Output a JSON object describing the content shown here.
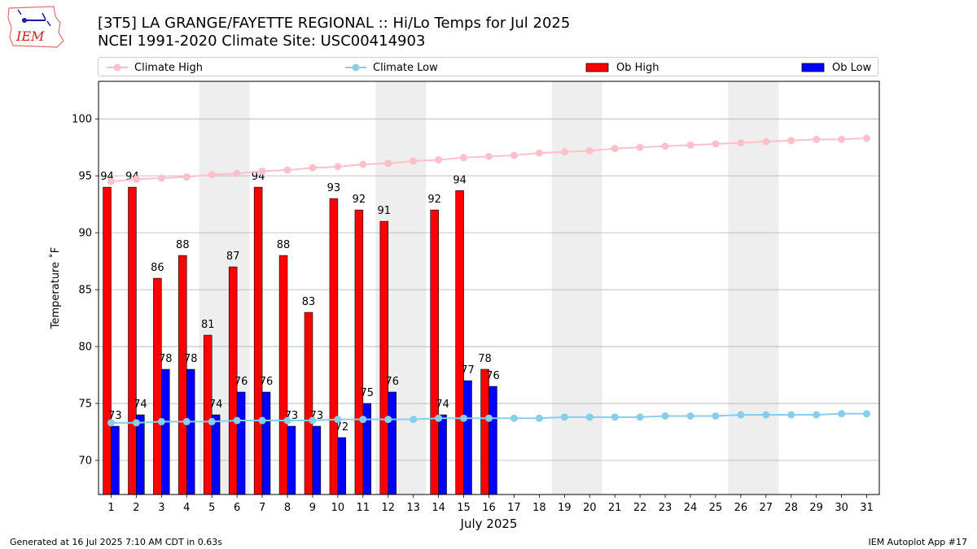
{
  "title": "[3T5] LA GRANGE/FAYETTE REGIONAL :: Hi/Lo Temps for Jul 2025",
  "subtitle": "NCEI 1991-2020 Climate Site: USC00414903",
  "logo_text": "IEM",
  "footer_left": "Generated at 16 Jul 2025 7:10 AM CDT in 0.63s",
  "footer_right": "IEM Autoplot App #17",
  "colors": {
    "ob_high": "#ff0000",
    "ob_low": "#0000ff",
    "climate_high": "#ffc0cb",
    "climate_low": "#87ceeb",
    "weekend_shade": "#eeeeee",
    "grid": "#b0b0b0"
  },
  "legend": [
    {
      "label": "Climate High",
      "kind": "line",
      "color": "#ffc0cb"
    },
    {
      "label": "Climate Low",
      "kind": "line",
      "color": "#87ceeb"
    },
    {
      "label": "Ob High",
      "kind": "bar",
      "color": "#ff0000"
    },
    {
      "label": "Ob Low",
      "kind": "bar",
      "color": "#0000ff"
    }
  ],
  "chart_data": {
    "type": "bar",
    "title": "[3T5] LA GRANGE/FAYETTE REGIONAL :: Hi/Lo Temps for Jul 2025",
    "subtitle": "NCEI 1991-2020 Climate Site: USC00414903",
    "xlabel": "July 2025",
    "ylabel": "Temperature ˚F",
    "ylim": [
      67,
      103.3
    ],
    "yticks": [
      70,
      75,
      80,
      85,
      90,
      95,
      100
    ],
    "grid": "horizontal",
    "legend_position": "top",
    "categories": [
      "1",
      "2",
      "3",
      "4",
      "5",
      "6",
      "7",
      "8",
      "9",
      "10",
      "11",
      "12",
      "13",
      "14",
      "15",
      "16",
      "17",
      "18",
      "19",
      "20",
      "21",
      "22",
      "23",
      "24",
      "25",
      "26",
      "27",
      "28",
      "29",
      "30",
      "31"
    ],
    "weekend_shading": [
      [
        "5",
        "6"
      ],
      [
        "12",
        "13"
      ],
      [
        "19",
        "20"
      ],
      [
        "26",
        "27"
      ]
    ],
    "series": [
      {
        "name": "Ob High",
        "kind": "bar",
        "values": [
          94,
          94,
          86,
          88,
          81,
          87,
          94,
          88,
          83,
          93,
          92,
          91,
          null,
          92,
          93.7,
          78,
          null,
          null,
          null,
          null,
          null,
          null,
          null,
          null,
          null,
          null,
          null,
          null,
          null,
          null,
          null
        ],
        "labels": [
          "94",
          "94",
          "86",
          "88",
          "81",
          "87",
          "94",
          "88",
          "83",
          "93",
          "92",
          "91",
          null,
          "92",
          "94",
          "78",
          null,
          null,
          null,
          null,
          null,
          null,
          null,
          null,
          null,
          null,
          null,
          null,
          null,
          null,
          null
        ]
      },
      {
        "name": "Ob Low",
        "kind": "bar",
        "values": [
          73,
          74,
          78,
          78,
          74,
          76,
          76,
          73,
          73,
          72,
          75,
          76,
          null,
          74,
          77,
          76.5,
          null,
          null,
          null,
          null,
          null,
          null,
          null,
          null,
          null,
          null,
          null,
          null,
          null,
          null,
          null
        ],
        "labels": [
          "73",
          "74",
          "78",
          "78",
          "74",
          "76",
          "76",
          "73",
          "73",
          "72",
          "75",
          "76",
          null,
          "74",
          "77",
          "76",
          null,
          null,
          null,
          null,
          null,
          null,
          null,
          null,
          null,
          null,
          null,
          null,
          null,
          null,
          null
        ]
      },
      {
        "name": "Climate High",
        "kind": "line",
        "values": [
          94.5,
          94.7,
          94.8,
          94.9,
          95.1,
          95.2,
          95.4,
          95.5,
          95.7,
          95.8,
          96.0,
          96.1,
          96.3,
          96.4,
          96.6,
          96.7,
          96.8,
          97.0,
          97.1,
          97.2,
          97.4,
          97.5,
          97.6,
          97.7,
          97.8,
          97.9,
          98.0,
          98.1,
          98.2,
          98.2,
          98.3
        ]
      },
      {
        "name": "Climate Low",
        "kind": "line",
        "values": [
          73.3,
          73.3,
          73.4,
          73.4,
          73.4,
          73.5,
          73.5,
          73.5,
          73.5,
          73.6,
          73.6,
          73.6,
          73.6,
          73.7,
          73.7,
          73.7,
          73.7,
          73.7,
          73.8,
          73.8,
          73.8,
          73.8,
          73.9,
          73.9,
          73.9,
          74.0,
          74.0,
          74.0,
          74.0,
          74.1,
          74.1
        ]
      }
    ]
  }
}
